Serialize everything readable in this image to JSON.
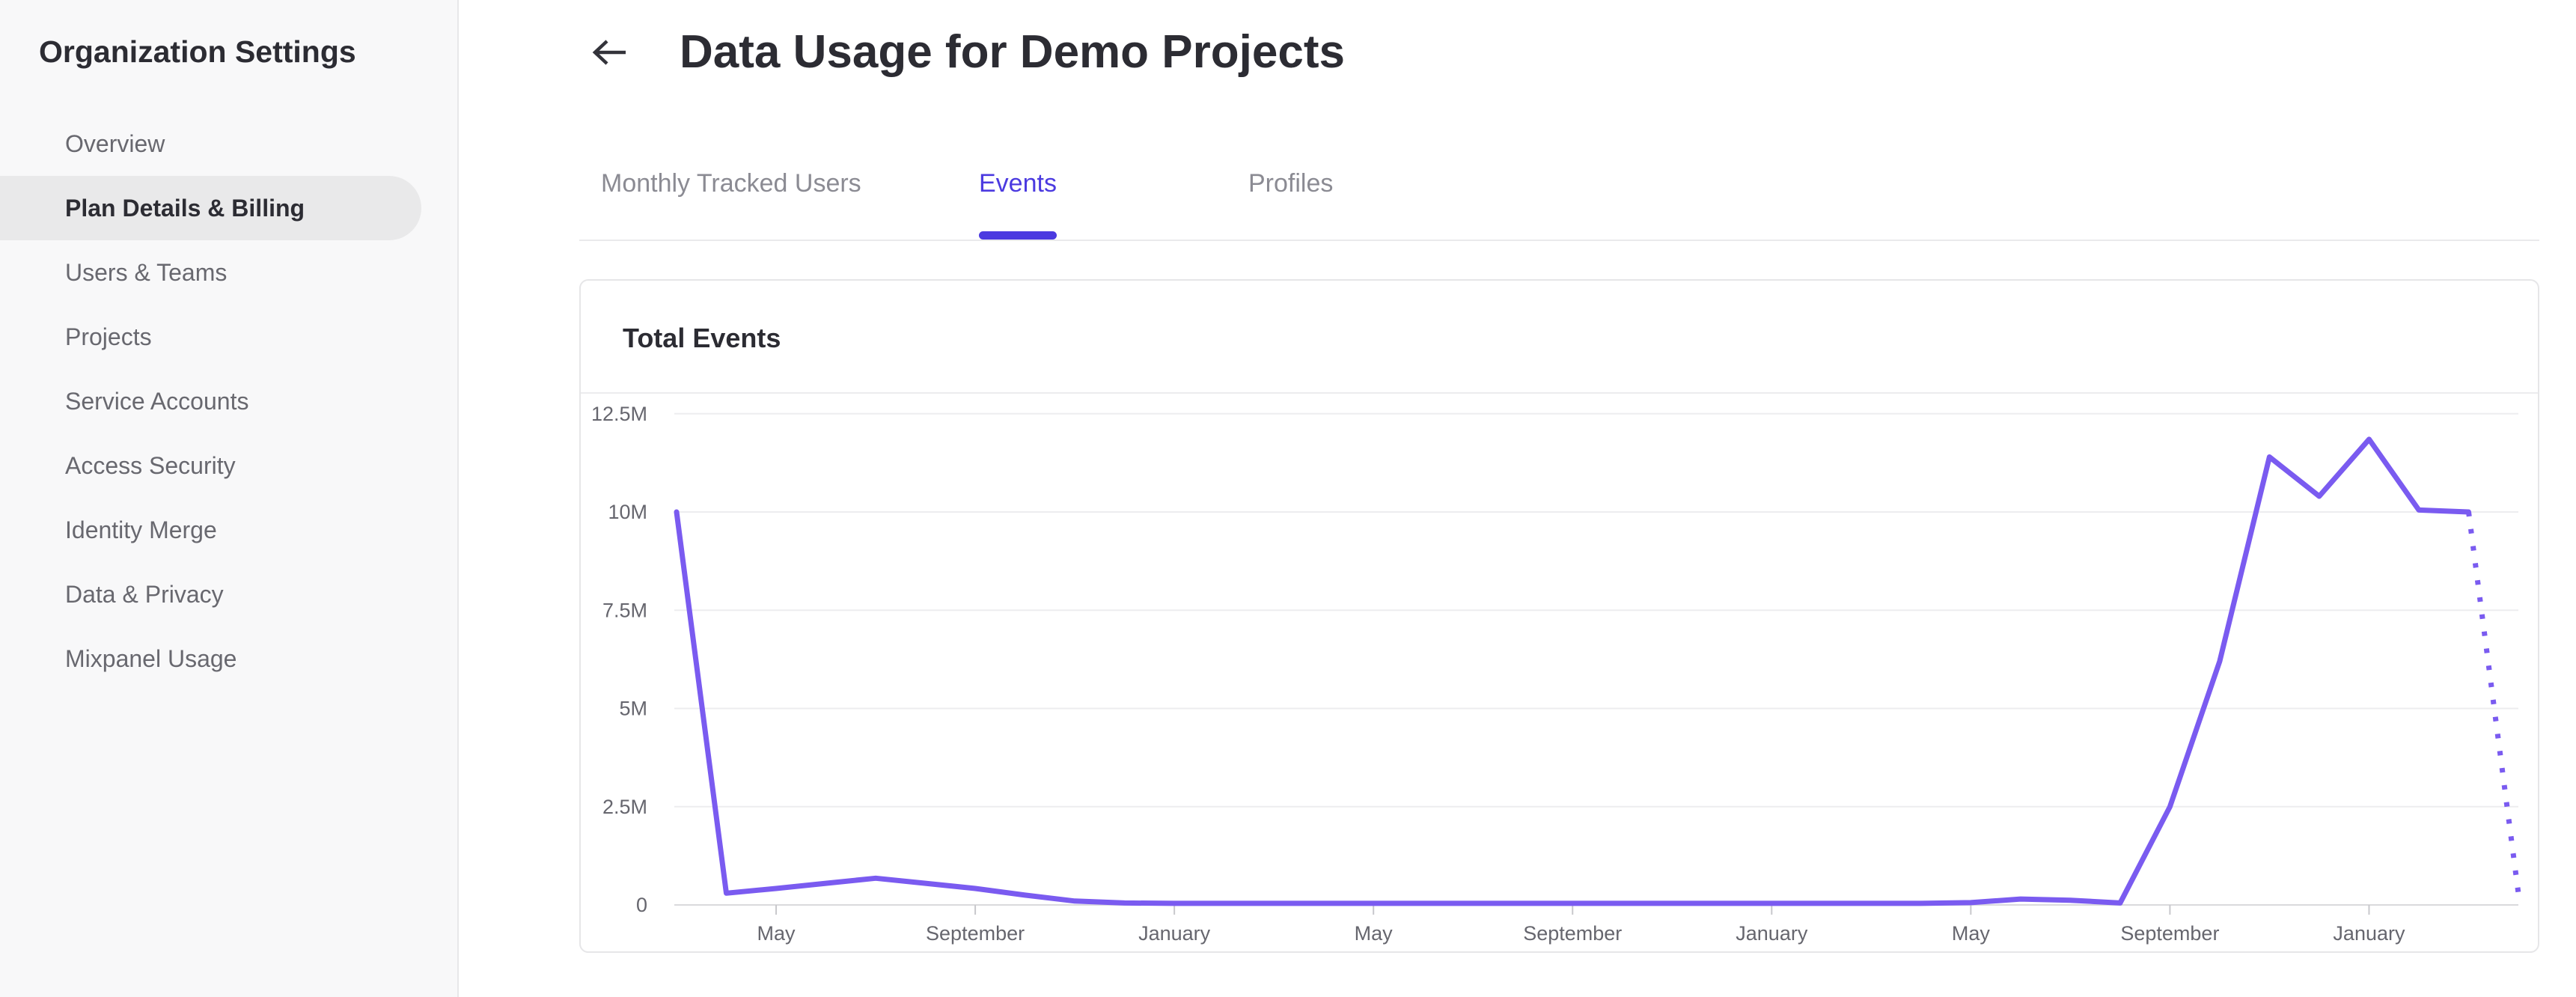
{
  "sidebar": {
    "title": "Organization Settings",
    "items": [
      {
        "label": "Overview",
        "active": false
      },
      {
        "label": "Plan Details & Billing",
        "active": true
      },
      {
        "label": "Users & Teams",
        "active": false
      },
      {
        "label": "Projects",
        "active": false
      },
      {
        "label": "Service Accounts",
        "active": false
      },
      {
        "label": "Access Security",
        "active": false
      },
      {
        "label": "Identity Merge",
        "active": false
      },
      {
        "label": "Data & Privacy",
        "active": false
      },
      {
        "label": "Mixpanel Usage",
        "active": false
      }
    ]
  },
  "header": {
    "title": "Data Usage for Demo Projects",
    "back_icon": "left-arrow"
  },
  "tabs": [
    {
      "label": "Monthly Tracked Users",
      "active": false
    },
    {
      "label": "Events",
      "active": true
    },
    {
      "label": "Profiles",
      "active": false
    }
  ],
  "card": {
    "title": "Total Events"
  },
  "colors": {
    "accent_tab": "#4b3ae0",
    "line": "#7a5bf0",
    "gridline": "#ededef",
    "axis_line": "#dadadc",
    "tick": "#c8c8cc",
    "axis_label": "#66666e"
  },
  "chart_data": {
    "type": "line",
    "title": "Total Events",
    "ylabel": "Total Events",
    "xlabel": "",
    "ylim": [
      0,
      12.5
    ],
    "grid": "horizontal",
    "legend": "none",
    "y_tick_labels": [
      "12.5M",
      "10M",
      "7.5M",
      "5M",
      "2.5M",
      "0"
    ],
    "y_tick_values": [
      12.5,
      10,
      7.5,
      5,
      2.5,
      0
    ],
    "x_tick_labels": [
      {
        "index": 2,
        "label": "May"
      },
      {
        "index": 6,
        "label": "September"
      },
      {
        "index": 10,
        "label": "January"
      },
      {
        "index": 14,
        "label": "May"
      },
      {
        "index": 18,
        "label": "September"
      },
      {
        "index": 22,
        "label": "January"
      },
      {
        "index": 26,
        "label": "May"
      },
      {
        "index": 30,
        "label": "September"
      },
      {
        "index": 34,
        "label": "January"
      }
    ],
    "series": [
      {
        "name": "Total Events (monthly, millions)",
        "values_millions": [
          10.0,
          0.3,
          0.42,
          0.55,
          0.68,
          0.55,
          0.42,
          0.25,
          0.1,
          0.05,
          0.04,
          0.04,
          0.04,
          0.04,
          0.04,
          0.04,
          0.04,
          0.04,
          0.04,
          0.04,
          0.04,
          0.04,
          0.04,
          0.04,
          0.04,
          0.04,
          0.06,
          0.15,
          0.12,
          0.05,
          2.5,
          6.2,
          11.4,
          10.4,
          11.85,
          10.05,
          10.0,
          0.3
        ],
        "solid_until_index": 36,
        "dotted_tail_note": "final incomplete month drawn as dotted line"
      }
    ]
  }
}
